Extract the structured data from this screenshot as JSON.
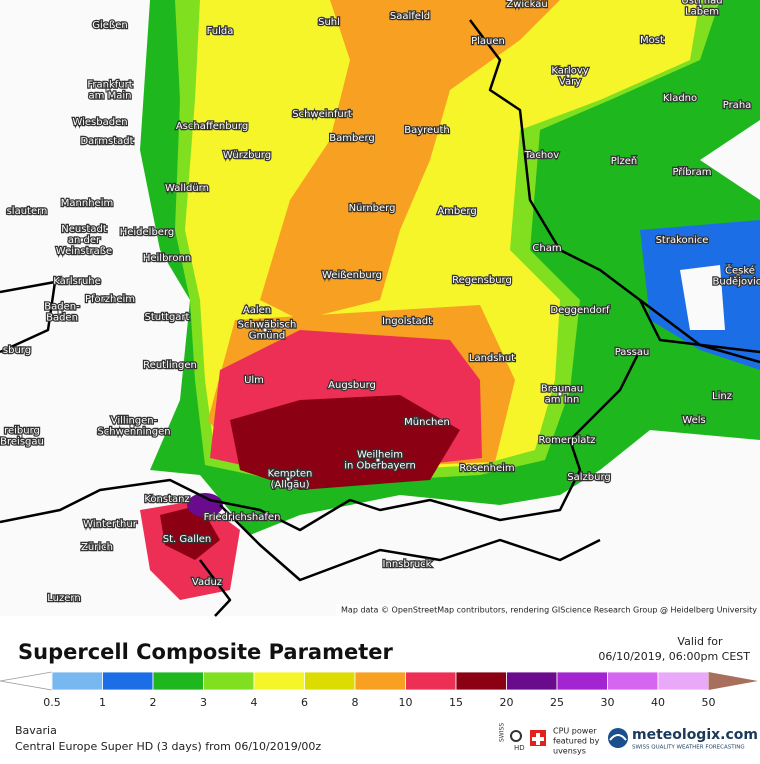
{
  "map": {
    "cities": [
      [
        "Gießen"
      ],
      [
        "Fulda"
      ],
      [
        "Suhl"
      ],
      [
        "Saalfeld"
      ],
      [
        "Zwickau"
      ],
      [
        "Ústí nad",
        "Labem"
      ],
      [
        "Plauen"
      ],
      [
        "Most"
      ],
      [
        "Frankfurt",
        "am Main"
      ],
      [
        "Karlovy",
        "Vary"
      ],
      [
        "Kladno"
      ],
      [
        "Praha"
      ],
      [
        "Wiesbaden"
      ],
      [
        "Aschaffenburg"
      ],
      [
        "Schweinfurt"
      ],
      [
        "Bayreuth"
      ],
      [
        "Darmstadt"
      ],
      [
        "Bamberg"
      ],
      [
        "Würzburg"
      ],
      [
        "Tachov"
      ],
      [
        "Plzeň"
      ],
      [
        "Příbram"
      ],
      [
        "Walldürn"
      ],
      [
        "slautern"
      ],
      [
        "Mannheim"
      ],
      [
        "Nürnberg"
      ],
      [
        "Amberg"
      ],
      [
        "Heidelberg"
      ],
      [
        "Neustadt",
        "an der",
        "Weinstraße"
      ],
      [
        "Heilbronn"
      ],
      [
        "Cham"
      ],
      [
        "Strakonice"
      ],
      [
        "Karlsruhe"
      ],
      [
        "Weißenburg"
      ],
      [
        "Regensburg"
      ],
      [
        "České",
        "Budějovice"
      ],
      [
        "Pforzheim"
      ],
      [
        "Aalen"
      ],
      [
        "Baden-",
        "Baden"
      ],
      [
        "Stuttgart"
      ],
      [
        "Schwäbisch",
        "Gmünd"
      ],
      [
        "Ingolstadt"
      ],
      [
        "Deggendorf"
      ],
      [
        "sburg"
      ],
      [
        "Landshut"
      ],
      [
        "Passau"
      ],
      [
        "Reutlingen"
      ],
      [
        "Ulm"
      ],
      [
        "Augsburg"
      ],
      [
        "Braunau",
        "am Inn"
      ],
      [
        "Linz"
      ],
      [
        "Villingen-",
        "Schwenningen"
      ],
      [
        "reiburg",
        "Breisgau"
      ],
      [
        "München"
      ],
      [
        "Wels"
      ],
      [
        "Romerplatz"
      ],
      [
        "Weilheim",
        "in Oberbayern"
      ],
      [
        "Rosenheim"
      ],
      [
        "Kempten",
        "(Allgäu)"
      ],
      [
        "Salzburg"
      ],
      [
        "Konstanz"
      ],
      [
        "Friedrichshafen"
      ],
      [
        "Winterthur"
      ],
      [
        "St. Gallen"
      ],
      [
        "Zürich"
      ],
      [
        "Innsbruck"
      ],
      [
        "Vaduz"
      ],
      [
        "Luzern"
      ]
    ],
    "attribution": "Map data © OpenStreetMap contributors, rendering GIScience Research Group @ Heidelberg University"
  },
  "header": {
    "title": "Supercell Composite Parameter",
    "valid_label": "Valid for",
    "valid_time": "06/10/2019, 06:00pm CEST"
  },
  "legend": {
    "labels": [
      "0.5",
      "1",
      "2",
      "3",
      "4",
      "6",
      "8",
      "10",
      "15",
      "20",
      "25",
      "30",
      "40",
      "50"
    ],
    "colors": [
      "#ffffff",
      "#78b8f0",
      "#1c6ee6",
      "#1eb81e",
      "#80e020",
      "#f5f52a",
      "#dcdc00",
      "#f7a021",
      "#ee2f55",
      "#8c0014",
      "#6a0a8c",
      "#a424d2",
      "#d466f2",
      "#eaa8f8",
      "#a8705c"
    ]
  },
  "footer": {
    "region": "Bavaria",
    "model": "Central Europe Super HD (3 days) from 06/10/2019/00z",
    "swiss": "SWISS",
    "hd": "HD",
    "cpu": [
      "CPU power",
      "featured by",
      "uvensys"
    ],
    "brand": "meteologix.com",
    "tagline": "SWISS QUALITY WEATHER FORECASTING"
  }
}
